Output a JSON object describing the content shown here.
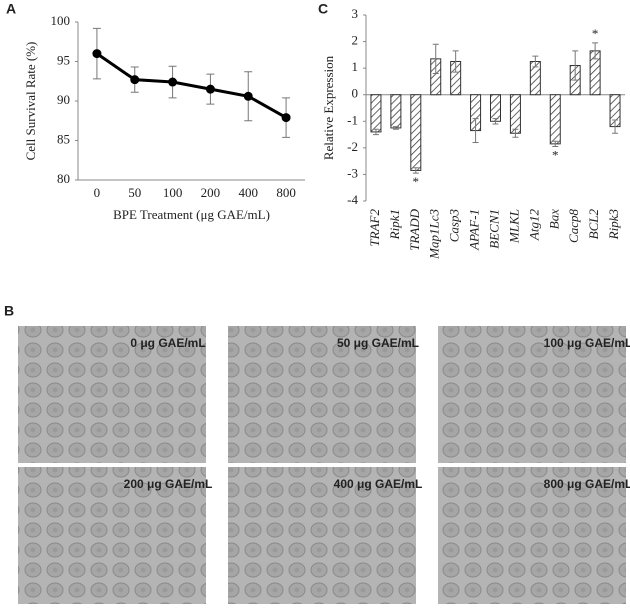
{
  "chart_data": [
    {
      "type": "line",
      "ylabel": "Cell Survival Rate (%)",
      "xlabel": "BPE Treatment (μg GAE/mL)",
      "categories": [
        "0",
        "50",
        "100",
        "200",
        "400",
        "800"
      ],
      "values": [
        96,
        92.7,
        92.4,
        91.5,
        90.6,
        87.9
      ],
      "errors": [
        3.2,
        1.6,
        2.0,
        1.9,
        3.1,
        2.5
      ],
      "color": "#000000",
      "ylim": [
        80,
        100
      ],
      "yticks": [
        80,
        85,
        90,
        95,
        100
      ],
      "grid": false
    },
    {
      "type": "bar",
      "ylabel": "Relative Expression",
      "categories": [
        "TRAF2",
        "Ripk1",
        "TRADD",
        "Map1Lc3",
        "Casp3",
        "APAF-1",
        "BECN1",
        "MLKL",
        "Atg12",
        "Bax",
        "Cacp8",
        "BCL2",
        "Ripk3"
      ],
      "values": [
        -1.4,
        -1.25,
        -2.85,
        1.35,
        1.25,
        -1.35,
        -1.0,
        -1.45,
        1.25,
        -1.85,
        1.1,
        1.65,
        -1.2
      ],
      "errors": [
        0.1,
        0.05,
        0.1,
        0.55,
        0.4,
        0.45,
        0.1,
        0.15,
        0.2,
        0.1,
        0.55,
        0.3,
        0.25
      ],
      "annotations": [
        {
          "text": "*",
          "category": "TRADD"
        },
        {
          "text": "*",
          "category": "Bax"
        },
        {
          "text": "*",
          "category": "BCL2"
        }
      ],
      "color": "#333333",
      "ylim": [
        -4,
        3
      ],
      "yticks": [
        -4,
        -3,
        -2,
        -1,
        0,
        1,
        2,
        3
      ],
      "grid": false
    }
  ],
  "panel_labels": [
    "A",
    "B",
    "C"
  ],
  "micrographs": [
    {
      "label": "0 μg GAE/mL"
    },
    {
      "label": "50 μg GAE/mL"
    },
    {
      "label": "100 μg GAE/mL"
    },
    {
      "label": "200 μg GAE/mL"
    },
    {
      "label": "400 μg GAE/mL"
    },
    {
      "label": "800 μg GAE/mL"
    }
  ]
}
